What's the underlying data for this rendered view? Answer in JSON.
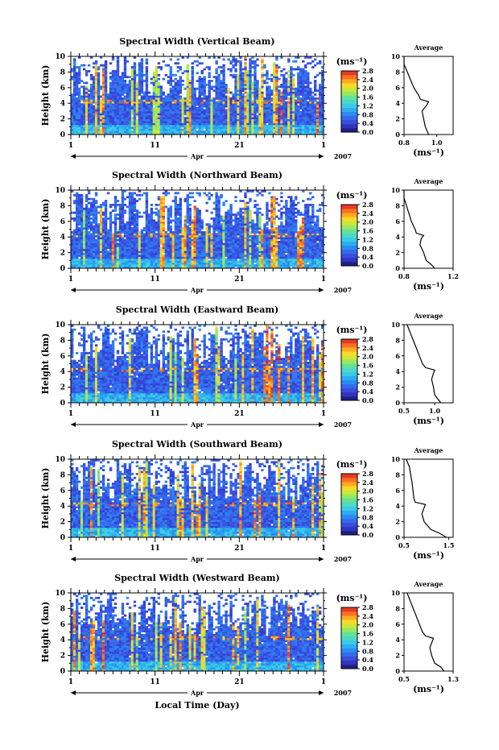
{
  "chart_data": [
    {
      "type": "heatmap",
      "title": "Spectral Width (Vertical Beam)",
      "ylabel": "Height (km)",
      "ylim": [
        0,
        10
      ],
      "y_ticks": [
        "0",
        "2",
        "4",
        "6",
        "8",
        "10"
      ],
      "x_tick_labels": [
        "1",
        "11",
        "21",
        "1"
      ],
      "x_axis_note": "Apr",
      "year": "2007",
      "colorbar": {
        "unit": "(ms⁻¹)",
        "min": 0.0,
        "max": 2.8,
        "labels": [
          "2.8",
          "2.4",
          "2.0",
          "1.6",
          "1.2",
          "0.8",
          "0.4",
          "0.0"
        ]
      },
      "average_profile": {
        "title": "Average",
        "xlabel": "(ms⁻¹)",
        "xlim": [
          0.8,
          1.1
        ],
        "x_ticks": [
          "0.8",
          "1.0"
        ],
        "points": [
          [
            0.95,
            0.0
          ],
          [
            0.94,
            0.5
          ],
          [
            0.93,
            1.0
          ],
          [
            0.92,
            2.0
          ],
          [
            0.91,
            3.0
          ],
          [
            0.94,
            3.8
          ],
          [
            0.95,
            4.2
          ],
          [
            0.9,
            4.5
          ],
          [
            0.89,
            5.0
          ],
          [
            0.86,
            6.0
          ],
          [
            0.84,
            7.0
          ],
          [
            0.82,
            8.0
          ],
          [
            0.8,
            9.0
          ],
          [
            0.8,
            10.0
          ]
        ]
      }
    },
    {
      "type": "heatmap",
      "title": "Spectral Width (Northward Beam)",
      "ylabel": "Height (km)",
      "ylim": [
        0,
        10
      ],
      "y_ticks": [
        "0",
        "2",
        "4",
        "6",
        "8",
        "10"
      ],
      "x_tick_labels": [
        "1",
        "11",
        "21",
        "1"
      ],
      "x_axis_note": "Apr",
      "year": "2007",
      "colorbar": {
        "unit": "(ms⁻¹)",
        "min": 0.0,
        "max": 2.8,
        "labels": [
          "2.8",
          "2.4",
          "2.0",
          "1.6",
          "1.2",
          "0.8",
          "0.4",
          "0.0"
        ]
      },
      "average_profile": {
        "title": "Average",
        "xlabel": "(ms⁻¹)",
        "xlim": [
          0.8,
          1.2
        ],
        "x_ticks": [
          "0.8",
          "1.2"
        ],
        "points": [
          [
            1.05,
            0.0
          ],
          [
            1.02,
            0.5
          ],
          [
            0.98,
            1.0
          ],
          [
            0.96,
            2.0
          ],
          [
            0.93,
            3.0
          ],
          [
            0.94,
            3.8
          ],
          [
            0.96,
            4.2
          ],
          [
            0.9,
            4.5
          ],
          [
            0.89,
            5.0
          ],
          [
            0.86,
            6.0
          ],
          [
            0.84,
            7.0
          ],
          [
            0.82,
            8.0
          ],
          [
            0.8,
            9.0
          ],
          [
            0.8,
            10.0
          ]
        ]
      }
    },
    {
      "type": "heatmap",
      "title": "Spectral Width (Eastward Beam)",
      "ylabel": "Height (km)",
      "ylim": [
        0,
        10
      ],
      "y_ticks": [
        "0",
        "2",
        "4",
        "6",
        "8",
        "10"
      ],
      "x_tick_labels": [
        "1",
        "11",
        "21",
        "1"
      ],
      "x_axis_note": "Apr",
      "year": "2007",
      "colorbar": {
        "unit": "(ms⁻¹)",
        "min": 0.0,
        "max": 2.8,
        "labels": [
          "2.8",
          "2.4",
          "2.0",
          "1.6",
          "1.2",
          "0.8",
          "0.4",
          "0.0"
        ]
      },
      "average_profile": {
        "title": "Average",
        "xlabel": "(ms⁻¹)",
        "xlim": [
          0.5,
          1.3
        ],
        "x_ticks": [
          "0.5",
          "1.0"
        ],
        "points": [
          [
            1.1,
            0.0
          ],
          [
            1.05,
            0.5
          ],
          [
            1.0,
            1.0
          ],
          [
            0.98,
            2.0
          ],
          [
            0.95,
            3.0
          ],
          [
            0.98,
            3.8
          ],
          [
            1.0,
            4.2
          ],
          [
            0.85,
            4.5
          ],
          [
            0.8,
            5.0
          ],
          [
            0.75,
            6.0
          ],
          [
            0.7,
            7.0
          ],
          [
            0.65,
            8.0
          ],
          [
            0.6,
            9.0
          ],
          [
            0.55,
            10.0
          ]
        ]
      }
    },
    {
      "type": "heatmap",
      "title": "Spectral Width (Southward Beam)",
      "ylabel": "Height (km)",
      "ylim": [
        0,
        10
      ],
      "y_ticks": [
        "0",
        "2",
        "4",
        "6",
        "8",
        "10"
      ],
      "x_tick_labels": [
        "1",
        "11",
        "21",
        "1"
      ],
      "x_axis_note": "Apr",
      "year": "2007",
      "colorbar": {
        "unit": "(ms⁻¹)",
        "min": 0.0,
        "max": 2.8,
        "labels": [
          "2.8",
          "2.4",
          "2.0",
          "1.6",
          "1.2",
          "0.8",
          "0.4",
          "0.0"
        ]
      },
      "average_profile": {
        "title": "Average",
        "xlabel": "(ms⁻¹)",
        "xlim": [
          0.5,
          1.6
        ],
        "x_ticks": [
          "0.5",
          "1.5"
        ],
        "points": [
          [
            1.45,
            0.0
          ],
          [
            1.3,
            0.5
          ],
          [
            1.1,
            1.0
          ],
          [
            0.95,
            2.0
          ],
          [
            0.9,
            3.0
          ],
          [
            0.95,
            3.8
          ],
          [
            0.98,
            4.2
          ],
          [
            0.75,
            4.5
          ],
          [
            0.72,
            5.0
          ],
          [
            0.7,
            6.0
          ],
          [
            0.68,
            7.0
          ],
          [
            0.65,
            8.0
          ],
          [
            0.62,
            9.0
          ],
          [
            0.55,
            10.0
          ]
        ]
      }
    },
    {
      "type": "heatmap",
      "title": "Spectral Width (Westward Beam)",
      "ylabel": "Height (km)",
      "ylim": [
        0,
        10
      ],
      "y_ticks": [
        "0",
        "2",
        "4",
        "6",
        "8",
        "10"
      ],
      "x_tick_labels": [
        "1",
        "11",
        "21",
        "1"
      ],
      "x_axis_note": "Apr",
      "year": "2007",
      "xlabel": "Local Time (Day)",
      "colorbar": {
        "unit": "(ms⁻¹)",
        "min": 0.0,
        "max": 2.8,
        "labels": [
          "2.8",
          "2.4",
          "2.0",
          "1.6",
          "1.2",
          "0.8",
          "0.4",
          "0.0"
        ]
      },
      "average_profile": {
        "title": "Average",
        "xlabel": "(ms⁻¹)",
        "xlim": [
          0.5,
          1.3
        ],
        "x_ticks": [
          "0.5",
          "1.3"
        ],
        "points": [
          [
            1.15,
            0.0
          ],
          [
            1.1,
            0.5
          ],
          [
            1.0,
            1.0
          ],
          [
            0.95,
            2.0
          ],
          [
            0.92,
            3.0
          ],
          [
            0.96,
            3.8
          ],
          [
            0.98,
            4.2
          ],
          [
            0.85,
            4.5
          ],
          [
            0.8,
            5.0
          ],
          [
            0.75,
            6.0
          ],
          [
            0.7,
            7.0
          ],
          [
            0.65,
            8.0
          ],
          [
            0.6,
            9.0
          ],
          [
            0.55,
            10.0
          ]
        ]
      }
    }
  ]
}
